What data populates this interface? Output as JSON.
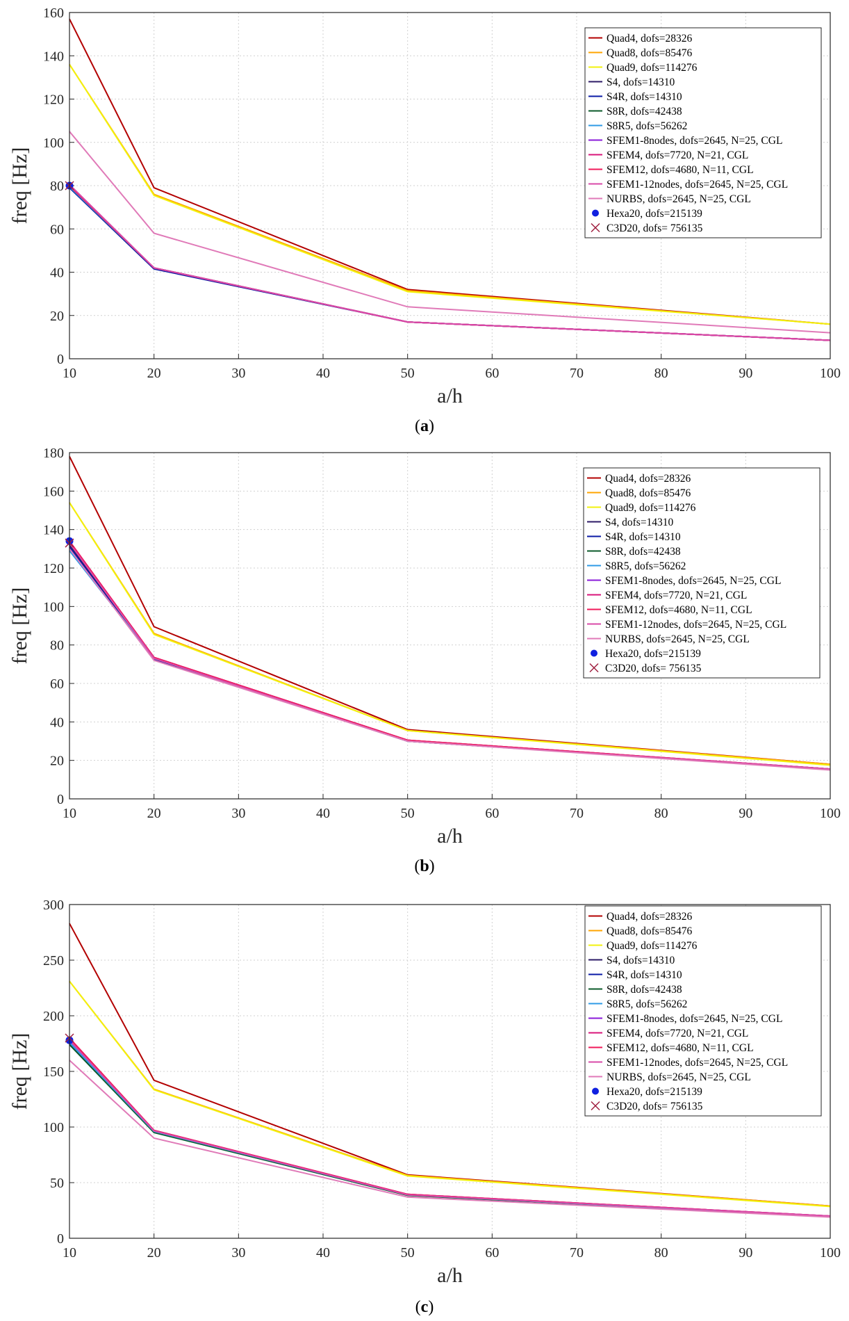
{
  "series_styles": [
    {
      "name": "Quad4, dofs=28326",
      "color": "#b30000",
      "marker": "line"
    },
    {
      "name": "Quad8, dofs=85476",
      "color": "#ffa500",
      "marker": "line"
    },
    {
      "name": "Quad9, dofs=114276",
      "color": "#f2f20d",
      "marker": "line"
    },
    {
      "name": "S4, dofs=14310",
      "color": "#2b1a66",
      "marker": "line"
    },
    {
      "name": "S4R, dofs=14310",
      "color": "#0a1aa6",
      "marker": "line"
    },
    {
      "name": "S8R, dofs=42438",
      "color": "#0b5a2a",
      "marker": "line"
    },
    {
      "name": "S8R5, dofs=56262",
      "color": "#2f9be6",
      "marker": "line"
    },
    {
      "name": "SFEM1-8nodes, dofs=2645, N=25, CGL",
      "color": "#8a1ad9",
      "marker": "line"
    },
    {
      "name": "SFEM4, dofs=7720, N=21, CGL",
      "color": "#d9147a",
      "marker": "line"
    },
    {
      "name": "SFEM12, dofs=4680, N=11, CGL",
      "color": "#f01a5a",
      "marker": "line"
    },
    {
      "name": "SFEM1-12nodes, dofs=2645, N=25, CGL",
      "color": "#d94aa8",
      "marker": "line"
    },
    {
      "name": "NURBS, dofs=2645, N=25, CGL",
      "color": "#e07ab8",
      "marker": "line"
    },
    {
      "name": "Hexa20, dofs=215139",
      "color": "#1020e0",
      "marker": "dot"
    },
    {
      "name": "C3D20, dofs= 756135",
      "color": "#a02040",
      "marker": "x"
    }
  ],
  "chart_data": [
    {
      "type": "line",
      "panel_label": "a",
      "xlabel": "a/h",
      "ylabel": "freq [Hz]",
      "xlim": [
        10,
        100
      ],
      "ylim": [
        0,
        160
      ],
      "xticks": [
        10,
        20,
        30,
        40,
        50,
        60,
        70,
        80,
        90,
        100
      ],
      "yticks": [
        0,
        20,
        40,
        60,
        80,
        100,
        120,
        140,
        160
      ],
      "grid": true,
      "legend": "top-right",
      "x": [
        10,
        20,
        50,
        100
      ],
      "series": [
        {
          "name": "Quad4, dofs=28326",
          "values": [
            157,
            79,
            32,
            16
          ]
        },
        {
          "name": "Quad8, dofs=85476",
          "values": [
            136,
            76,
            31.5,
            16
          ]
        },
        {
          "name": "Quad9, dofs=114276",
          "values": [
            136,
            75.5,
            31,
            16
          ]
        },
        {
          "name": "S4, dofs=14310",
          "values": [
            79.5,
            42,
            17,
            8.5
          ]
        },
        {
          "name": "S4R, dofs=14310",
          "values": [
            79,
            41.5,
            17,
            8.5
          ]
        },
        {
          "name": "S8R, dofs=42438",
          "values": [
            79.5,
            42,
            17,
            8.5
          ]
        },
        {
          "name": "S8R5, dofs=56262",
          "values": [
            79.5,
            42,
            17,
            8.5
          ]
        },
        {
          "name": "SFEM1-8nodes, dofs=2645, N=25, CGL",
          "values": [
            80,
            42,
            17,
            8.5
          ]
        },
        {
          "name": "SFEM4, dofs=7720, N=21, CGL",
          "values": [
            80,
            42,
            17,
            8.5
          ]
        },
        {
          "name": "SFEM12, dofs=4680, N=11, CGL",
          "values": [
            80,
            42,
            17,
            8.5
          ]
        },
        {
          "name": "SFEM1-12nodes, dofs=2645, N=25, CGL",
          "values": [
            80.5,
            42,
            17,
            8.5
          ]
        },
        {
          "name": "NURBS, dofs=2645, N=25, CGL",
          "values": [
            105,
            58,
            24,
            12
          ]
        },
        {
          "name": "Hexa20, dofs=215139",
          "x": [
            10
          ],
          "values": [
            80
          ]
        },
        {
          "name": "C3D20, dofs= 756135",
          "x": [
            10
          ],
          "values": [
            80
          ]
        }
      ]
    },
    {
      "type": "line",
      "panel_label": "b",
      "xlabel": "a/h",
      "ylabel": "freq [Hz]",
      "xlim": [
        10,
        100
      ],
      "ylim": [
        0,
        180
      ],
      "xticks": [
        10,
        20,
        30,
        40,
        50,
        60,
        70,
        80,
        90,
        100
      ],
      "yticks": [
        0,
        20,
        40,
        60,
        80,
        100,
        120,
        140,
        160,
        180
      ],
      "grid": true,
      "legend": "top-right",
      "x": [
        10,
        20,
        50,
        100
      ],
      "series": [
        {
          "name": "Quad4, dofs=28326",
          "values": [
            178,
            89.5,
            36,
            18
          ]
        },
        {
          "name": "Quad8, dofs=85476",
          "values": [
            154,
            86,
            35.5,
            18
          ]
        },
        {
          "name": "Quad9, dofs=114276",
          "values": [
            154,
            85.5,
            35.5,
            17.5
          ]
        },
        {
          "name": "S4, dofs=14310",
          "values": [
            132,
            73,
            30,
            15.5
          ]
        },
        {
          "name": "S4R, dofs=14310",
          "values": [
            131,
            72.5,
            30,
            15.5
          ]
        },
        {
          "name": "S8R, dofs=42438",
          "values": [
            133,
            73,
            30,
            15.5
          ]
        },
        {
          "name": "S8R5, dofs=56262",
          "values": [
            129,
            73,
            30,
            15.5
          ]
        },
        {
          "name": "SFEM1-8nodes, dofs=2645, N=25, CGL",
          "values": [
            134,
            73.5,
            30.5,
            15.5
          ]
        },
        {
          "name": "SFEM4, dofs=7720, N=21, CGL",
          "values": [
            134,
            73.5,
            30.5,
            15.5
          ]
        },
        {
          "name": "SFEM12, dofs=4680, N=11, CGL",
          "values": [
            134,
            73.5,
            30.5,
            15.5
          ]
        },
        {
          "name": "SFEM1-12nodes, dofs=2645, N=25, CGL",
          "values": [
            133,
            73,
            30,
            15.5
          ]
        },
        {
          "name": "NURBS, dofs=2645, N=25, CGL",
          "values": [
            130,
            72,
            30,
            15
          ]
        },
        {
          "name": "Hexa20, dofs=215139",
          "x": [
            10
          ],
          "values": [
            134
          ]
        },
        {
          "name": "C3D20, dofs= 756135",
          "x": [
            10
          ],
          "values": [
            133
          ]
        }
      ]
    },
    {
      "type": "line",
      "panel_label": "c",
      "xlabel": "a/h",
      "ylabel": "freq [Hz]",
      "xlim": [
        10,
        100
      ],
      "ylim": [
        0,
        300
      ],
      "xticks": [
        10,
        20,
        30,
        40,
        50,
        60,
        70,
        80,
        90,
        100
      ],
      "yticks": [
        0,
        50,
        100,
        150,
        200,
        250,
        300
      ],
      "grid": true,
      "legend": "top-right",
      "x": [
        10,
        20,
        50,
        100
      ],
      "series": [
        {
          "name": "Quad4, dofs=28326",
          "values": [
            283,
            142,
            57,
            29
          ]
        },
        {
          "name": "Quad8, dofs=85476",
          "values": [
            231,
            134,
            56.5,
            29
          ]
        },
        {
          "name": "Quad9, dofs=114276",
          "values": [
            231,
            133.5,
            56,
            28.5
          ]
        },
        {
          "name": "S4, dofs=14310",
          "values": [
            176,
            96,
            39,
            19.5
          ]
        },
        {
          "name": "S4R, dofs=14310",
          "values": [
            175,
            95.5,
            39,
            19.5
          ]
        },
        {
          "name": "S8R, dofs=42438",
          "values": [
            174,
            95,
            38.5,
            19.5
          ]
        },
        {
          "name": "S8R5, dofs=56262",
          "values": [
            176,
            96,
            39,
            19.5
          ]
        },
        {
          "name": "SFEM1-8nodes, dofs=2645, N=25, CGL",
          "values": [
            178,
            97,
            39.5,
            20
          ]
        },
        {
          "name": "SFEM4, dofs=7720, N=21, CGL",
          "values": [
            180,
            97,
            39.5,
            20
          ]
        },
        {
          "name": "SFEM12, dofs=4680, N=11, CGL",
          "values": [
            180,
            97,
            39.5,
            20
          ]
        },
        {
          "name": "SFEM1-12nodes, dofs=2645, N=25, CGL",
          "values": [
            178,
            96.5,
            39,
            20
          ]
        },
        {
          "name": "NURBS, dofs=2645, N=25, CGL",
          "values": [
            160,
            90,
            37,
            19
          ]
        },
        {
          "name": "Hexa20, dofs=215139",
          "x": [
            10
          ],
          "values": [
            178
          ]
        },
        {
          "name": "C3D20, dofs= 756135",
          "x": [
            10
          ],
          "values": [
            180
          ]
        }
      ]
    }
  ]
}
